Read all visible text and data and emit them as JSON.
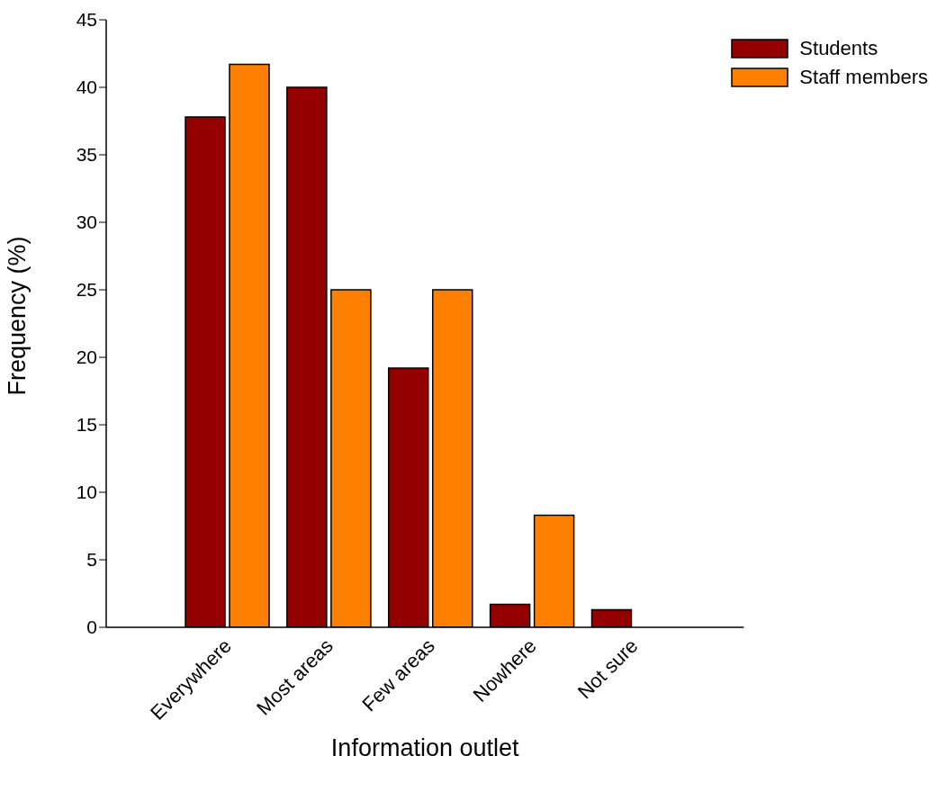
{
  "chart_data": {
    "type": "bar",
    "xlabel": "Information outlet",
    "ylabel": "Frequency (%)",
    "categories": [
      "Everywhere",
      "Most areas",
      "Few areas",
      "Nowhere",
      "Not sure"
    ],
    "series": [
      {
        "name": "Students",
        "color": "#940000",
        "values": [
          37.8,
          40.0,
          19.2,
          1.7,
          1.3
        ]
      },
      {
        "name": "Staff members",
        "color": "#ff8000",
        "values": [
          41.7,
          25.0,
          25.0,
          8.3,
          0
        ]
      }
    ],
    "ylim": [
      0,
      45
    ],
    "yticks": [
      0,
      5,
      10,
      15,
      20,
      25,
      30,
      35,
      40,
      45
    ],
    "grid": false,
    "legend": "top right"
  }
}
